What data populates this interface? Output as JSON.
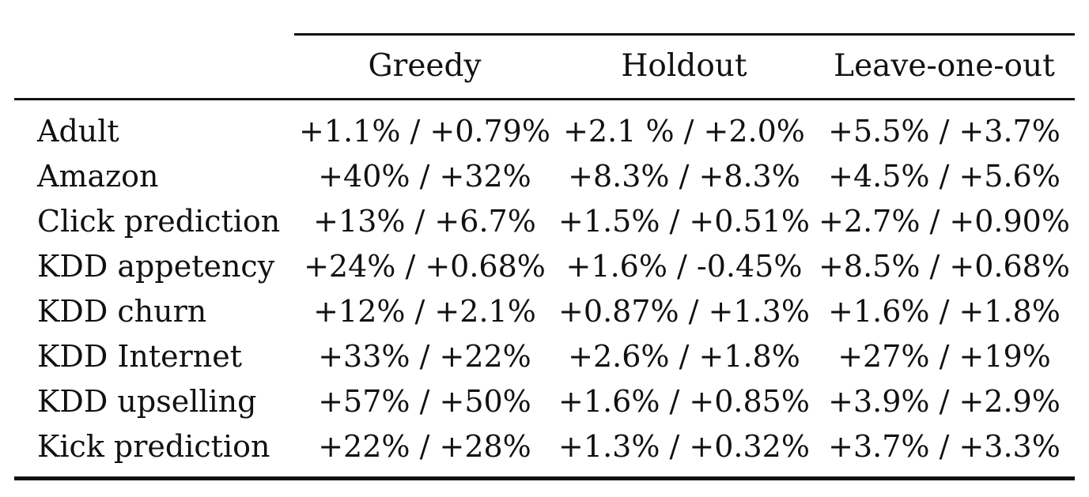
{
  "table": {
    "headers": [
      "Greedy",
      "Holdout",
      "Leave-one-out"
    ],
    "rows": [
      {
        "label": "Adult",
        "values": [
          "+1.1% / +0.79%",
          "+2.1 % / +2.0%",
          "+5.5% / +3.7%"
        ]
      },
      {
        "label": "Amazon",
        "values": [
          "+40% / +32%",
          "+8.3% / +8.3%",
          "+4.5% / +5.6%"
        ]
      },
      {
        "label": "Click prediction",
        "values": [
          "+13% / +6.7%",
          "+1.5% / +0.51%",
          "+2.7% / +0.90%"
        ]
      },
      {
        "label": "KDD appetency",
        "values": [
          "+24% / +0.68%",
          "+1.6% / -0.45%",
          "+8.5% / +0.68%"
        ]
      },
      {
        "label": "KDD churn",
        "values": [
          "+12% / +2.1%",
          "+0.87% / +1.3%",
          "+1.6% / +1.8%"
        ]
      },
      {
        "label": "KDD Internet",
        "values": [
          "+33% / +22%",
          "+2.6% / +1.8%",
          "+27% / +19%"
        ]
      },
      {
        "label": "KDD upselling",
        "values": [
          "+57% / +50%",
          "+1.6% / +0.85%",
          "+3.9% / +2.9%"
        ]
      },
      {
        "label": "Kick prediction",
        "values": [
          "+22% / +28%",
          "+1.3% / +0.32%",
          "+3.7% / +3.3%"
        ]
      }
    ]
  }
}
